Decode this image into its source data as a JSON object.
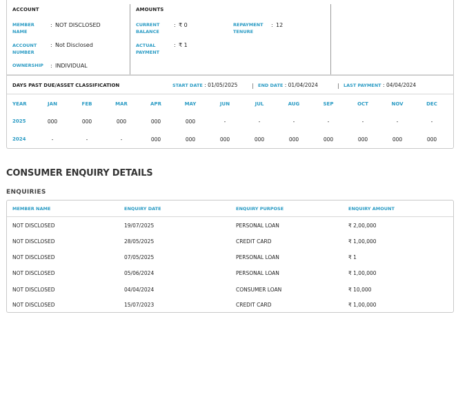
{
  "account": {
    "heading": "ACCOUNT",
    "member_name_label": "MEMBER NAME",
    "member_name_value": "NOT DISCLOSED",
    "account_number_label": "ACCOUNT NUMBER",
    "account_number_value": "Not Disclosed",
    "ownership_label": "OWNERSHIP",
    "ownership_value": "INDIVIDUAL"
  },
  "amounts": {
    "heading": "AMOUNTS",
    "current_balance_label": "CURRENT BALANCE",
    "current_balance_value": "₹ 0",
    "actual_payment_label": "ACTUAL PAYMENT",
    "actual_payment_value": "₹ 1",
    "repayment_tenure_label": "REPAYMENT TENURE",
    "repayment_tenure_value": "12"
  },
  "colon": ":",
  "dpd": {
    "title": "DAYS PAST DUE/ASSET CLASSIFICATION",
    "start_label": "START DATE",
    "start_value": "01/05/2025",
    "end_label": "END DATE",
    "end_value": "01/04/2024",
    "last_payment_label": "LAST PAYMENT",
    "last_payment_value": "04/04/2024",
    "separator": "|",
    "columns": [
      "YEAR",
      "JAN",
      "FEB",
      "MAR",
      "APR",
      "MAY",
      "JUN",
      "JUL",
      "AUG",
      "SEP",
      "OCT",
      "NOV",
      "DEC"
    ],
    "rows": [
      {
        "year": "2025",
        "values": [
          "000",
          "000",
          "000",
          "000",
          "000",
          "-",
          "-",
          "-",
          "-",
          "-",
          "-",
          "-"
        ]
      },
      {
        "year": "2024",
        "values": [
          "-",
          "-",
          "-",
          "000",
          "000",
          "000",
          "000",
          "000",
          "000",
          "000",
          "000",
          "000"
        ]
      }
    ]
  },
  "enquiry_section": {
    "title": "CONSUMER ENQUIRY DETAILS",
    "subtitle": "ENQUIRIES",
    "headers": [
      "MEMBER NAME",
      "ENQUIRY DATE",
      "ENQUIRY PURPOSE",
      "ENQUIRY AMOUNT"
    ],
    "rows": [
      [
        "NOT DISCLOSED",
        "19/07/2025",
        "PERSONAL LOAN",
        "₹ 2,00,000"
      ],
      [
        "NOT DISCLOSED",
        "28/05/2025",
        "CREDIT CARD",
        "₹ 1,00,000"
      ],
      [
        "NOT DISCLOSED",
        "07/05/2025",
        "PERSONAL LOAN",
        "₹ 1"
      ],
      [
        "NOT DISCLOSED",
        "05/06/2024",
        "PERSONAL LOAN",
        "₹ 1,00,000"
      ],
      [
        "NOT DISCLOSED",
        "04/04/2024",
        "CONSUMER LOAN",
        "₹ 10,000"
      ],
      [
        "NOT DISCLOSED",
        "15/07/2023",
        "CREDIT CARD",
        "₹ 1,00,000"
      ]
    ]
  }
}
